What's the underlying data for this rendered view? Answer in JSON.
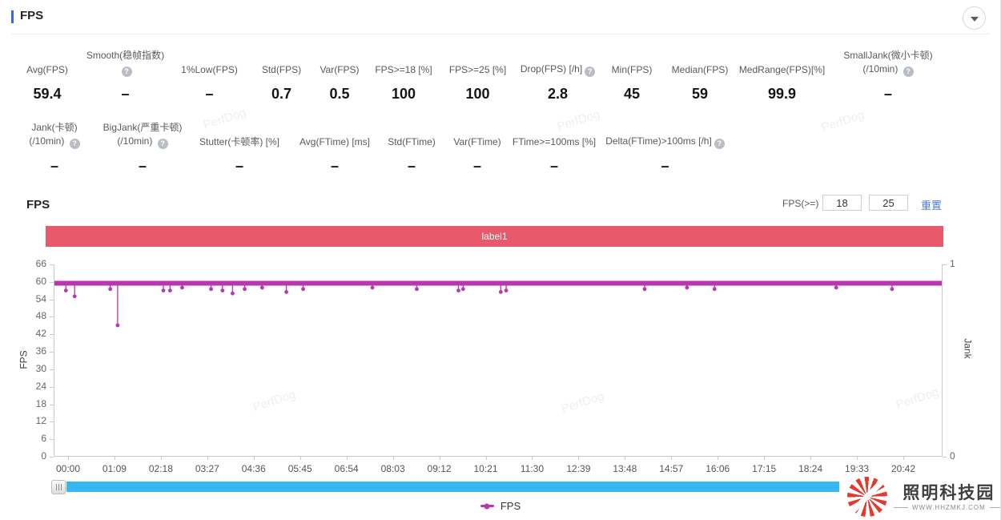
{
  "header": {
    "title": "FPS"
  },
  "stats": {
    "row1": [
      {
        "label": "Avg(FPS)",
        "value": "59.4"
      },
      {
        "label": "Smooth(稳帧指数)",
        "help": true,
        "value": "–"
      },
      {
        "label": "1%Low(FPS)",
        "value": "–"
      },
      {
        "label": "Std(FPS)",
        "value": "0.7"
      },
      {
        "label": "Var(FPS)",
        "value": "0.5"
      },
      {
        "label": "FPS>=18 [%]",
        "value": "100"
      },
      {
        "label": "FPS>=25 [%]",
        "value": "100"
      },
      {
        "label": "Drop(FPS) [/h]",
        "help": true,
        "value": "2.8"
      },
      {
        "label": "Min(FPS)",
        "value": "45"
      },
      {
        "label": "Median(FPS)",
        "value": "59"
      },
      {
        "label": "MedRange(FPS)[%]",
        "value": "99.9"
      },
      {
        "label": "SmallJank(微小卡顿)",
        "label2": "(/10min)",
        "help": true,
        "value": "–"
      }
    ],
    "row2": [
      {
        "label": "Jank(卡顿)",
        "label2": "(/10min)",
        "help": true,
        "value": "–"
      },
      {
        "label": "BigJank(严重卡顿)",
        "label2": "(/10min)",
        "help": true,
        "value": "–"
      },
      {
        "label": "Stutter(卡顿率) [%]",
        "value": "–"
      },
      {
        "label": "Avg(FTime) [ms]",
        "value": "–"
      },
      {
        "label": "Std(FTime)",
        "value": "–"
      },
      {
        "label": "Var(FTime)",
        "value": "–"
      },
      {
        "label": "FTime>=100ms [%]",
        "value": "–"
      },
      {
        "label": "Delta(FTime)>100ms [/h]",
        "help": true,
        "value": "–"
      }
    ]
  },
  "chart": {
    "section_title": "FPS",
    "banner_label": "label1",
    "controls": {
      "filter_label": "FPS(>=)",
      "min_value": "18",
      "max_value": "25",
      "reset_label": "重置"
    }
  },
  "chart_data": {
    "type": "line",
    "title": "FPS",
    "x_labels": [
      "00:00",
      "01:09",
      "02:18",
      "03:27",
      "04:36",
      "05:45",
      "06:54",
      "08:03",
      "09:12",
      "10:21",
      "11:30",
      "12:39",
      "13:48",
      "14:57",
      "16:06",
      "17:15",
      "18:24",
      "19:33",
      "20:42"
    ],
    "x_range_seconds": [
      0,
      1320
    ],
    "x_tick_interval_seconds": 69,
    "yaxis_left": {
      "label": "FPS",
      "ticks": [
        0,
        6,
        12,
        18,
        24,
        30,
        36,
        42,
        48,
        54,
        60,
        66
      ],
      "range": [
        0,
        66
      ]
    },
    "yaxis_right": {
      "label": "Jank",
      "ticks": [
        0,
        1
      ],
      "range": [
        0,
        1
      ]
    },
    "grid": false,
    "legend_position": "bottom-center",
    "series": [
      {
        "name": "FPS",
        "color": "#b935b1",
        "baseline_fps": 59.5,
        "dips": [
          [
            17,
            57
          ],
          [
            30,
            55
          ],
          [
            83,
            57.5
          ],
          [
            94,
            45
          ],
          [
            162,
            57
          ],
          [
            172,
            57
          ],
          [
            190,
            58
          ],
          [
            233,
            57.5
          ],
          [
            250,
            57
          ],
          [
            265,
            56
          ],
          [
            283,
            57.5
          ],
          [
            309,
            58
          ],
          [
            345,
            56.5
          ],
          [
            370,
            57.5
          ],
          [
            473,
            58
          ],
          [
            539,
            57.5
          ],
          [
            601,
            57
          ],
          [
            608,
            57.5
          ],
          [
            664,
            56.5
          ],
          [
            672,
            57
          ],
          [
            878,
            57.5
          ],
          [
            941,
            58
          ],
          [
            982,
            57.5
          ],
          [
            1163,
            58
          ],
          [
            1246,
            57.5
          ]
        ]
      }
    ],
    "legend": [
      {
        "name": "FPS",
        "color": "#b935b1"
      }
    ]
  },
  "watermark": "PerfDog",
  "logo": {
    "name": "照明科技园",
    "url": "WWW.HHZMKJ.COM"
  },
  "colors": {
    "accent_blue": "#3a68d8",
    "banner_red": "#e8596b",
    "series_magenta": "#b935b1",
    "scrollbar_blue": "#36b7f1",
    "link_blue": "#4a7bd5"
  }
}
